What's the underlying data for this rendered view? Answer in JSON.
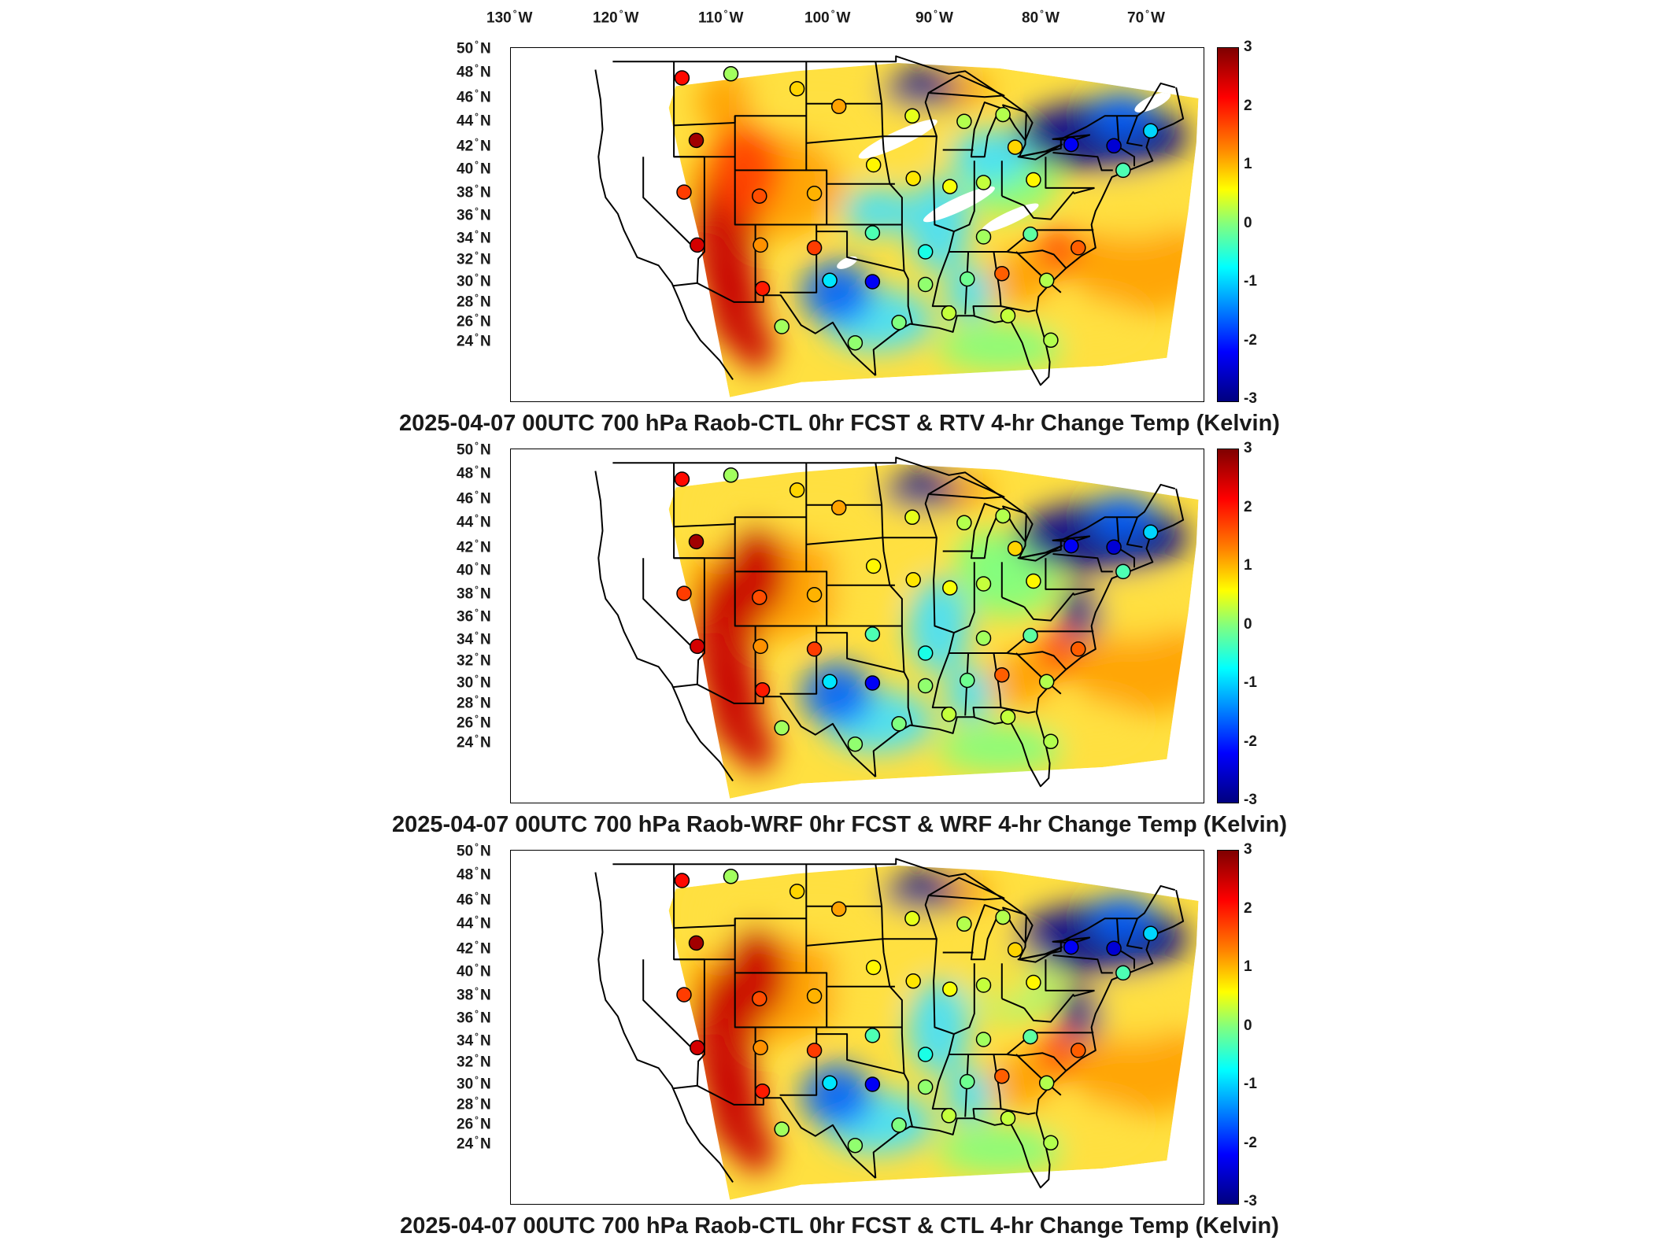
{
  "longitude_labels": [
    {
      "deg": "130",
      "dir": "W"
    },
    {
      "deg": "120",
      "dir": "W"
    },
    {
      "deg": "110",
      "dir": "W"
    },
    {
      "deg": "100",
      "dir": "W"
    },
    {
      "deg": "90",
      "dir": "W"
    },
    {
      "deg": "80",
      "dir": "W"
    },
    {
      "deg": "70",
      "dir": "W"
    }
  ],
  "latitude_labels": [
    {
      "deg": "50",
      "dir": "N"
    },
    {
      "deg": "48",
      "dir": "N"
    },
    {
      "deg": "46",
      "dir": "N"
    },
    {
      "deg": "44",
      "dir": "N"
    },
    {
      "deg": "42",
      "dir": "N"
    },
    {
      "deg": "40",
      "dir": "N"
    },
    {
      "deg": "38",
      "dir": "N"
    },
    {
      "deg": "36",
      "dir": "N"
    },
    {
      "deg": "34",
      "dir": "N"
    },
    {
      "deg": "32",
      "dir": "N"
    },
    {
      "deg": "30",
      "dir": "N"
    },
    {
      "deg": "28",
      "dir": "N"
    },
    {
      "deg": "26",
      "dir": "N"
    },
    {
      "deg": "24",
      "dir": "N"
    }
  ],
  "colorbar": {
    "ticks": [
      "3",
      "2",
      "1",
      "0",
      "-1",
      "-2",
      "-3"
    ],
    "range": [
      -3,
      3
    ],
    "colors": [
      "#7f0000",
      "#ff0000",
      "#ff8000",
      "#ffff00",
      "#80ff80",
      "#00ffff",
      "#0080ff",
      "#0000ff",
      "#00007f"
    ]
  },
  "panels": [
    {
      "title": "2025-04-07 00UTC 700 hPa Raob-CTL 0hr FCST & RTV 4-hr Change Temp (Kelvin)"
    },
    {
      "title": "2025-04-07 00UTC 700 hPa Raob-WRF 0hr FCST & WRF 4-hr Change Temp (Kelvin)"
    },
    {
      "title": "2025-04-07 00UTC 700 hPa Raob-CTL 0hr FCST & CTL 4-hr Change Temp (Kelvin)"
    }
  ],
  "map": {
    "lon_range": [
      -133,
      -65
    ],
    "lat_range": [
      24,
      50
    ],
    "colors": {
      "warm": "#c80000",
      "hot": "#ff4000",
      "orange": "#ffa000",
      "yellow": "#ffe040",
      "green": "#80ff80",
      "cyan": "#40e0ff",
      "blue": "#0060ff",
      "navy": "#000090"
    }
  },
  "raob_stations": [
    {
      "lon": -116.2,
      "lat": 47.8,
      "value": 2.2
    },
    {
      "lon": -111.4,
      "lat": 48.1,
      "value": 0.2
    },
    {
      "lon": -104.9,
      "lat": 47.0,
      "value": 1.0
    },
    {
      "lon": -100.8,
      "lat": 45.7,
      "value": 1.3
    },
    {
      "lon": -93.6,
      "lat": 45.0,
      "value": 0.6
    },
    {
      "lon": -88.5,
      "lat": 44.6,
      "value": 0.3
    },
    {
      "lon": -84.7,
      "lat": 45.1,
      "value": 0.3
    },
    {
      "lon": -83.5,
      "lat": 42.7,
      "value": 1.0
    },
    {
      "lon": -114.8,
      "lat": 43.2,
      "value": 2.8
    },
    {
      "lon": -116.0,
      "lat": 39.4,
      "value": 1.9
    },
    {
      "lon": -108.6,
      "lat": 39.1,
      "value": 1.8
    },
    {
      "lon": -103.2,
      "lat": 39.3,
      "value": 1.2
    },
    {
      "lon": -97.4,
      "lat": 41.4,
      "value": 0.8
    },
    {
      "lon": -93.5,
      "lat": 40.4,
      "value": 0.9
    },
    {
      "lon": -89.9,
      "lat": 39.8,
      "value": 0.7
    },
    {
      "lon": -86.6,
      "lat": 40.1,
      "value": 0.4
    },
    {
      "lon": -81.7,
      "lat": 40.3,
      "value": 0.8
    },
    {
      "lon": -114.7,
      "lat": 35.5,
      "value": 2.5
    },
    {
      "lon": -108.5,
      "lat": 35.5,
      "value": 1.4
    },
    {
      "lon": -103.2,
      "lat": 35.3,
      "value": 1.9
    },
    {
      "lon": -97.5,
      "lat": 36.4,
      "value": -0.3
    },
    {
      "lon": -92.3,
      "lat": 35.0,
      "value": -0.6
    },
    {
      "lon": -86.6,
      "lat": 36.1,
      "value": 0.2
    },
    {
      "lon": -82.0,
      "lat": 36.3,
      "value": -0.2
    },
    {
      "lon": -77.3,
      "lat": 35.3,
      "value": 1.7
    },
    {
      "lon": -108.3,
      "lat": 32.3,
      "value": 2.1
    },
    {
      "lon": -101.7,
      "lat": 32.9,
      "value": -0.9
    },
    {
      "lon": -97.5,
      "lat": 32.8,
      "value": -2.3
    },
    {
      "lon": -92.3,
      "lat": 32.6,
      "value": 0.1
    },
    {
      "lon": -88.2,
      "lat": 33.0,
      "value": -0.1
    },
    {
      "lon": -84.8,
      "lat": 33.4,
      "value": 1.7
    },
    {
      "lon": -80.4,
      "lat": 32.9,
      "value": 0.3
    },
    {
      "lon": -106.4,
      "lat": 29.5,
      "value": 0.2
    },
    {
      "lon": -99.2,
      "lat": 28.3,
      "value": 0.1
    },
    {
      "lon": -94.9,
      "lat": 29.8,
      "value": 0.0
    },
    {
      "lon": -90.0,
      "lat": 30.5,
      "value": 0.4
    },
    {
      "lon": -84.2,
      "lat": 30.3,
      "value": 0.4
    },
    {
      "lon": -80.0,
      "lat": 28.5,
      "value": 0.3
    },
    {
      "lon": -78.0,
      "lat": 42.9,
      "value": -2.3
    },
    {
      "lon": -73.8,
      "lat": 42.8,
      "value": -2.5
    },
    {
      "lon": -70.2,
      "lat": 43.9,
      "value": -1.0
    },
    {
      "lon": -72.9,
      "lat": 41.0,
      "value": -0.3
    }
  ]
}
